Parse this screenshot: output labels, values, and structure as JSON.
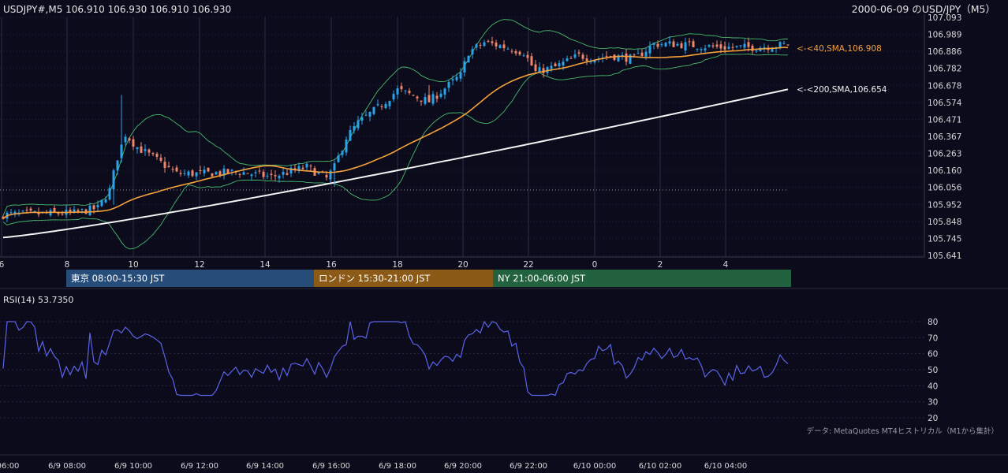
{
  "header": {
    "symbol_line": "USDJPY#,M5 106.910 106.930 106.910 106.930",
    "right_title": "2000-06-09 のUSD/JPY（M5）"
  },
  "colors": {
    "background": "#0b0b1c",
    "bull": "#2aa3e8",
    "bear": "#f0866a",
    "sma40": "#f5a13b",
    "sma200": "#f2f2f2",
    "bollinger": "#49b96b",
    "rsi": "#5b64e6",
    "tokyo": "#264c7a",
    "london": "#8a5a16",
    "ny": "#22623f"
  },
  "labels": {
    "sma40": "<-<40,SMA,106.908",
    "sma200": "<-<200,SMA,106.654",
    "rsi_title": "RSI(14) 53.7350",
    "source": "データ: MetaQuotes MT4ヒストリカル（M1から集計）"
  },
  "sessions": [
    {
      "label": "東京 08:00-15:30 JST",
      "color": "#264c7a"
    },
    {
      "label": "ロンドン 15:30-21:00 JST",
      "color": "#8a5a16"
    },
    {
      "label": "NY 21:00-06:00 JST",
      "color": "#22623f"
    }
  ],
  "chart_data": [
    {
      "type": "candlestick",
      "title": "2000-06-09 のUSD/JPY（M5）",
      "timeframe": "M5",
      "hour_ticks": [
        "6",
        "8",
        "10",
        "12",
        "14",
        "16",
        "18",
        "20",
        "22",
        "0",
        "2",
        "4"
      ],
      "y_ticks": [
        "107.093",
        "106.989",
        "106.886",
        "106.782",
        "106.678",
        "106.574",
        "106.471",
        "106.367",
        "106.263",
        "106.160",
        "106.056",
        "105.952",
        "105.848",
        "105.745",
        "105.641"
      ],
      "ylim": [
        105.641,
        107.093
      ],
      "series": [
        {
          "name": "SMA 40",
          "last": 106.908
        },
        {
          "name": "SMA 200",
          "last": 106.654
        }
      ],
      "anchors": [
        [
          0,
          105.89
        ],
        [
          18,
          105.9
        ],
        [
          24,
          105.93
        ],
        [
          27,
          106.04
        ],
        [
          29,
          106.24
        ],
        [
          31,
          106.38
        ],
        [
          34,
          106.3
        ],
        [
          38,
          106.24
        ],
        [
          44,
          106.14
        ],
        [
          50,
          106.14
        ],
        [
          60,
          106.15
        ],
        [
          68,
          106.12
        ],
        [
          77,
          106.18
        ],
        [
          82,
          106.11
        ],
        [
          84,
          106.18
        ],
        [
          87,
          106.36
        ],
        [
          90,
          106.45
        ],
        [
          96,
          106.56
        ],
        [
          100,
          106.65
        ],
        [
          108,
          106.58
        ],
        [
          112,
          106.66
        ],
        [
          116,
          106.74
        ],
        [
          118,
          106.88
        ],
        [
          122,
          106.94
        ],
        [
          126,
          106.92
        ],
        [
          132,
          106.88
        ],
        [
          135,
          106.76
        ],
        [
          140,
          106.79
        ],
        [
          146,
          106.86
        ],
        [
          150,
          106.84
        ],
        [
          154,
          106.86
        ],
        [
          160,
          106.84
        ],
        [
          165,
          106.93
        ],
        [
          170,
          106.93
        ],
        [
          176,
          106.92
        ],
        [
          182,
          106.91
        ],
        [
          190,
          106.91
        ],
        [
          196,
          106.92
        ],
        [
          199,
          106.93
        ]
      ],
      "sma40_last": 106.908,
      "sma200_last": 106.654
    },
    {
      "type": "line",
      "title": "RSI(14) 53.7350",
      "y_ticks": [
        "80",
        "70",
        "60",
        "50",
        "40",
        "30",
        "20"
      ],
      "ylim": [
        20,
        80
      ],
      "x_ticks": [
        "06:00",
        "6/9 08:00",
        "6/9 10:00",
        "6/9 12:00",
        "6/9 14:00",
        "6/9 16:00",
        "6/9 18:00",
        "6/9 20:00",
        "6/9 22:00",
        "6/10 00:00",
        "6/10 02:00",
        "6/10 04:00"
      ],
      "last": 53.735
    }
  ]
}
